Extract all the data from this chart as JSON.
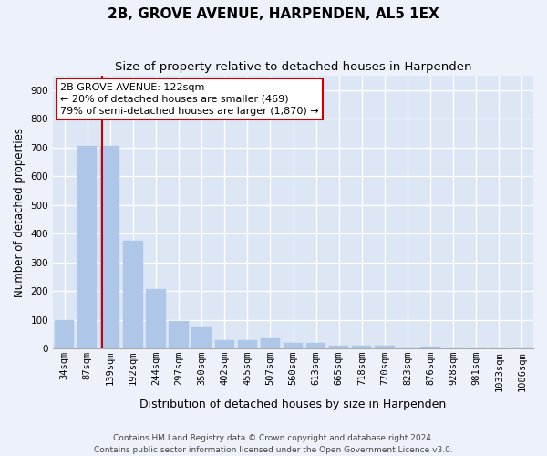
{
  "title": "2B, GROVE AVENUE, HARPENDEN, AL5 1EX",
  "subtitle": "Size of property relative to detached houses in Harpenden",
  "xlabel": "Distribution of detached houses by size in Harpenden",
  "ylabel": "Number of detached properties",
  "categories": [
    "34sqm",
    "87sqm",
    "139sqm",
    "192sqm",
    "244sqm",
    "297sqm",
    "350sqm",
    "402sqm",
    "455sqm",
    "507sqm",
    "560sqm",
    "613sqm",
    "665sqm",
    "718sqm",
    "770sqm",
    "823sqm",
    "876sqm",
    "928sqm",
    "981sqm",
    "1033sqm",
    "1086sqm"
  ],
  "values": [
    100,
    707,
    707,
    375,
    207,
    95,
    73,
    30,
    30,
    35,
    20,
    20,
    10,
    10,
    10,
    0,
    8,
    0,
    0,
    0,
    0
  ],
  "bar_color": "#aec6e8",
  "bar_edgecolor": "#aec6e8",
  "bar_width": 0.85,
  "vline_x": 1.65,
  "vline_color": "#cc0000",
  "annotation_text": "2B GROVE AVENUE: 122sqm\n← 20% of detached houses are smaller (469)\n79% of semi-detached houses are larger (1,870) →",
  "annotation_box_color": "#ffffff",
  "annotation_box_edgecolor": "#cc0000",
  "ylim": [
    0,
    950
  ],
  "yticks": [
    0,
    100,
    200,
    300,
    400,
    500,
    600,
    700,
    800,
    900
  ],
  "fig_background_color": "#edf2fa",
  "ax_background_color": "#dce6f5",
  "grid_color": "#ffffff",
  "footer_line1": "Contains HM Land Registry data © Crown copyright and database right 2024.",
  "footer_line2": "Contains public sector information licensed under the Open Government Licence v3.0.",
  "title_fontsize": 11,
  "subtitle_fontsize": 9.5,
  "xlabel_fontsize": 9,
  "ylabel_fontsize": 8.5,
  "tick_fontsize": 7.5,
  "annotation_fontsize": 8,
  "footer_fontsize": 6.5
}
